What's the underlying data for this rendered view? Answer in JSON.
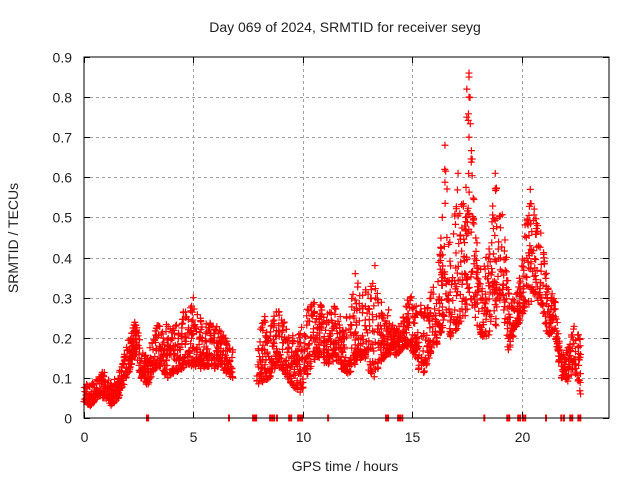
{
  "chart_data": {
    "type": "scatter",
    "title": "Day 069 of 2024, SRMTID for receiver seyg",
    "xlabel": "GPS time / hours",
    "ylabel": "SRMTID / TECUs",
    "xlim": [
      0,
      24
    ],
    "ylim": [
      0,
      0.9
    ],
    "xticks": [
      0,
      5,
      10,
      15,
      20
    ],
    "xtick_labels": [
      "0",
      "5",
      "10",
      "15",
      "20"
    ],
    "yticks": [
      0,
      0.1,
      0.2,
      0.3,
      0.4,
      0.5,
      0.6,
      0.7,
      0.8,
      0.9
    ],
    "ytick_labels": [
      "0",
      "0.1",
      "0.2",
      "0.3",
      "0.4",
      "0.5",
      "0.6",
      "0.7",
      "0.8",
      "0.9"
    ],
    "grid": true,
    "legend": "none",
    "marker": "+",
    "series": [
      {
        "name": "SRMTID",
        "color": "#ff0000",
        "envelope": [
          [
            0.0,
            0.04,
            0.09
          ],
          [
            0.3,
            0.03,
            0.08
          ],
          [
            0.6,
            0.05,
            0.1
          ],
          [
            0.9,
            0.05,
            0.12
          ],
          [
            1.2,
            0.03,
            0.09
          ],
          [
            1.5,
            0.04,
            0.1
          ],
          [
            1.8,
            0.08,
            0.15
          ],
          [
            2.1,
            0.12,
            0.21
          ],
          [
            2.3,
            0.16,
            0.26
          ],
          [
            2.6,
            0.1,
            0.18
          ],
          [
            2.9,
            0.08,
            0.17
          ],
          [
            3.2,
            0.12,
            0.22
          ],
          [
            3.5,
            0.13,
            0.25
          ],
          [
            3.8,
            0.1,
            0.24
          ],
          [
            4.1,
            0.11,
            0.22
          ],
          [
            4.4,
            0.12,
            0.26
          ],
          [
            4.7,
            0.13,
            0.27
          ],
          [
            5.0,
            0.13,
            0.3
          ],
          [
            5.3,
            0.12,
            0.25
          ],
          [
            5.6,
            0.13,
            0.24
          ],
          [
            5.9,
            0.11,
            0.24
          ],
          [
            6.2,
            0.13,
            0.22
          ],
          [
            6.5,
            0.11,
            0.2
          ],
          [
            6.8,
            0.1,
            0.17
          ],
          [
            7.9,
            0.08,
            0.17
          ],
          [
            8.2,
            0.09,
            0.27
          ],
          [
            8.5,
            0.1,
            0.22
          ],
          [
            8.8,
            0.13,
            0.28
          ],
          [
            9.1,
            0.12,
            0.25
          ],
          [
            9.4,
            0.09,
            0.2
          ],
          [
            9.7,
            0.07,
            0.22
          ],
          [
            10.0,
            0.06,
            0.26
          ],
          [
            10.3,
            0.12,
            0.28
          ],
          [
            10.6,
            0.15,
            0.3
          ],
          [
            10.9,
            0.14,
            0.28
          ],
          [
            11.2,
            0.13,
            0.26
          ],
          [
            11.5,
            0.14,
            0.3
          ],
          [
            11.8,
            0.12,
            0.26
          ],
          [
            12.1,
            0.11,
            0.28
          ],
          [
            12.4,
            0.13,
            0.36
          ],
          [
            12.7,
            0.15,
            0.33
          ],
          [
            13.0,
            0.12,
            0.33
          ],
          [
            13.3,
            0.1,
            0.37
          ],
          [
            13.6,
            0.14,
            0.31
          ],
          [
            13.9,
            0.16,
            0.28
          ],
          [
            14.2,
            0.15,
            0.22
          ],
          [
            14.5,
            0.17,
            0.24
          ],
          [
            14.8,
            0.18,
            0.3
          ],
          [
            15.1,
            0.15,
            0.31
          ],
          [
            15.4,
            0.1,
            0.3
          ],
          [
            15.7,
            0.13,
            0.28
          ],
          [
            16.0,
            0.17,
            0.35
          ],
          [
            16.3,
            0.2,
            0.48
          ],
          [
            16.5,
            0.25,
            0.67
          ],
          [
            16.8,
            0.18,
            0.45
          ],
          [
            17.1,
            0.22,
            0.6
          ],
          [
            17.4,
            0.25,
            0.55
          ],
          [
            17.6,
            0.28,
            0.86
          ],
          [
            17.9,
            0.24,
            0.46
          ],
          [
            18.2,
            0.2,
            0.4
          ],
          [
            18.5,
            0.2,
            0.42
          ],
          [
            18.8,
            0.22,
            0.61
          ],
          [
            19.1,
            0.3,
            0.52
          ],
          [
            19.4,
            0.16,
            0.38
          ],
          [
            19.7,
            0.22,
            0.3
          ],
          [
            20.0,
            0.25,
            0.38
          ],
          [
            20.3,
            0.28,
            0.57
          ],
          [
            20.6,
            0.3,
            0.53
          ],
          [
            20.9,
            0.28,
            0.46
          ],
          [
            21.2,
            0.2,
            0.34
          ],
          [
            21.5,
            0.22,
            0.31
          ],
          [
            21.8,
            0.1,
            0.16
          ],
          [
            22.1,
            0.09,
            0.18
          ],
          [
            22.4,
            0.12,
            0.23
          ],
          [
            22.7,
            0.06,
            0.21
          ]
        ],
        "envelope_columns": [
          "hour",
          "min_tecu",
          "max_tecu"
        ],
        "peaks": [
          {
            "x": 16.5,
            "y": 0.68
          },
          {
            "x": 17.1,
            "y": 0.61
          },
          {
            "x": 17.6,
            "y": 0.86
          },
          {
            "x": 17.6,
            "y": 0.85
          },
          {
            "x": 17.5,
            "y": 0.82
          },
          {
            "x": 17.6,
            "y": 0.8
          },
          {
            "x": 17.5,
            "y": 0.75
          },
          {
            "x": 17.6,
            "y": 0.7
          },
          {
            "x": 18.8,
            "y": 0.61
          },
          {
            "x": 20.4,
            "y": 0.57
          },
          {
            "x": 5.0,
            "y": 0.3
          },
          {
            "x": 13.3,
            "y": 0.38
          },
          {
            "x": 12.4,
            "y": 0.36
          },
          {
            "x": 22.7,
            "y": 0.06
          }
        ],
        "zero_points_hours": [
          2.88,
          2.93,
          6.63,
          7.73,
          7.8,
          7.87,
          8.51,
          8.6,
          8.69,
          8.82,
          9.38,
          9.47,
          9.79,
          9.88,
          9.97,
          11.16,
          13.81,
          13.9,
          14.36,
          14.45,
          14.55,
          18.3,
          19.35,
          19.44,
          19.85,
          19.94,
          20.07,
          20.17,
          21.12,
          21.82,
          21.94,
          22.23,
          22.32,
          22.6,
          22.69
        ]
      }
    ]
  }
}
